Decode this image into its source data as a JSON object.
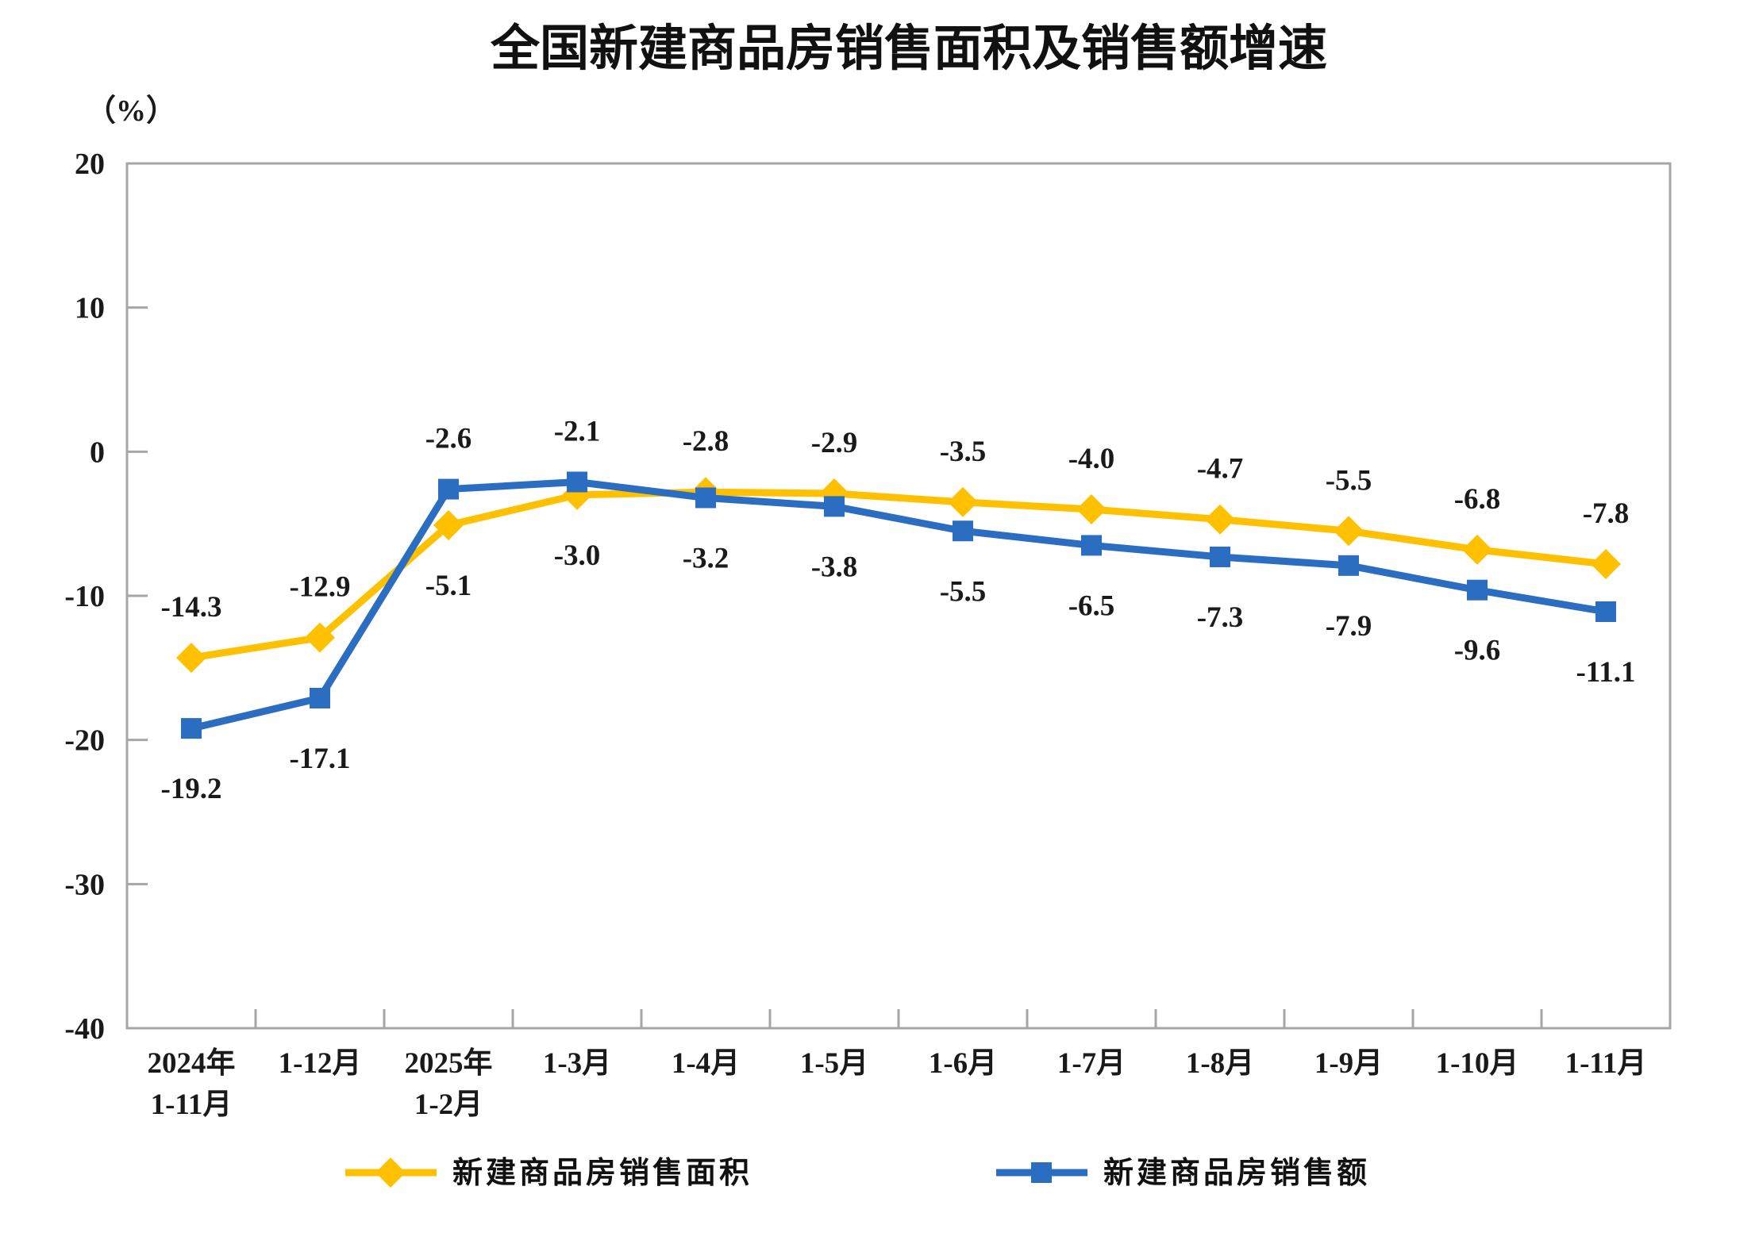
{
  "page": {
    "background": "#ffffff"
  },
  "chart_data": {
    "type": "line",
    "title": "全国新建商品房销售面积及销售额增速",
    "unit_label": "（%）",
    "categories": [
      [
        "2024年",
        "1-11月"
      ],
      [
        "1-12月"
      ],
      [
        "2025年",
        "1-2月"
      ],
      [
        "1-3月"
      ],
      [
        "1-4月"
      ],
      [
        "1-5月"
      ],
      [
        "1-6月"
      ],
      [
        "1-7月"
      ],
      [
        "1-8月"
      ],
      [
        "1-9月"
      ],
      [
        "1-10月"
      ],
      [
        "1-11月"
      ]
    ],
    "series": [
      {
        "name": "新建商品房销售面积",
        "color": "#FFC000",
        "marker": "diamond",
        "values": [
          -14.3,
          -12.9,
          -5.1,
          -3.0,
          -2.8,
          -2.9,
          -3.5,
          -4.0,
          -4.7,
          -5.5,
          -6.8,
          -7.8
        ],
        "label_side": [
          "above",
          "above",
          "below",
          "below",
          "above",
          "above",
          "above",
          "above",
          "above",
          "above",
          "above",
          "above"
        ]
      },
      {
        "name": "新建商品房销售额",
        "color": "#2B6DC0",
        "marker": "square",
        "values": [
          -19.2,
          -17.1,
          -2.6,
          -2.1,
          -3.2,
          -3.8,
          -5.5,
          -6.5,
          -7.3,
          -7.9,
          -9.6,
          -11.1
        ],
        "label_side": [
          "below",
          "below",
          "above",
          "above",
          "below",
          "below",
          "below",
          "below",
          "below",
          "below",
          "below",
          "below"
        ]
      }
    ],
    "ylim": [
      -40,
      20
    ],
    "ytick_step": 10,
    "ytick_labels": [
      "20",
      "10",
      "0",
      "-10",
      "-20",
      "-30",
      "-40"
    ],
    "grid": false,
    "legend_position": "bottom",
    "axis_color": "#a6a6a6",
    "text_color": "#1a1a1a"
  }
}
